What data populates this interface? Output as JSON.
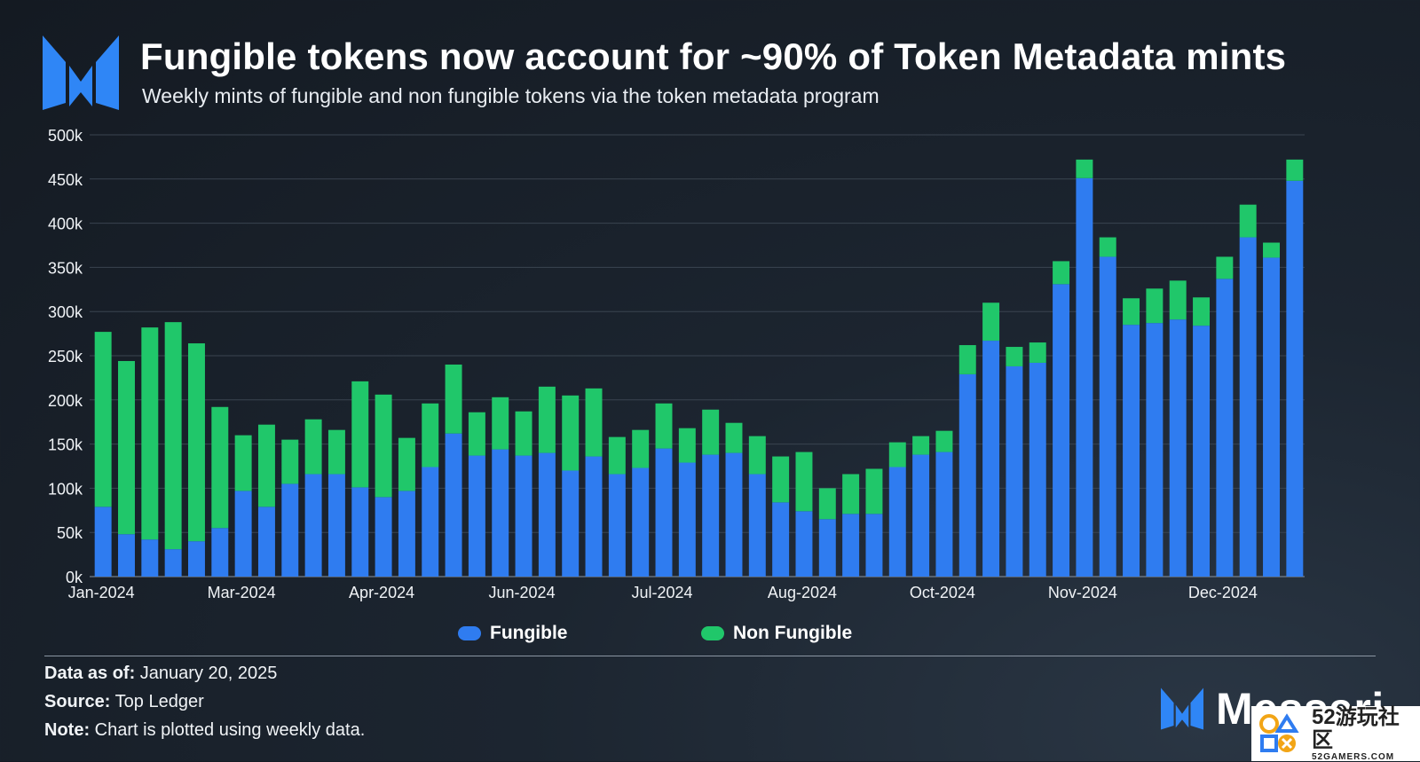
{
  "header": {
    "title": "Fungible tokens now account for ~90% of Token Metadata mints",
    "subtitle": "Weekly mints of fungible and non fungible tokens via the token metadata program"
  },
  "colors": {
    "fungible": "#2f7cf0",
    "non_fungible": "#20c76a",
    "grid": "#3a4450",
    "axis_text": "#f0f3f6",
    "brand_blue": "#2f86f6"
  },
  "chart_data": {
    "type": "bar",
    "stacked": true,
    "title": "",
    "xlabel": "",
    "ylabel": "",
    "ylim": [
      0,
      500000
    ],
    "yticks": [
      "0k",
      "50k",
      "100k",
      "150k",
      "200k",
      "250k",
      "300k",
      "350k",
      "400k",
      "450k",
      "500k"
    ],
    "xtick_labels": [
      {
        "label": "Jan-2024",
        "bar_index": 0
      },
      {
        "label": "Mar-2024",
        "bar_index": 6
      },
      {
        "label": "Apr-2024",
        "bar_index": 12
      },
      {
        "label": "Jun-2024",
        "bar_index": 18
      },
      {
        "label": "Jul-2024",
        "bar_index": 24
      },
      {
        "label": "Aug-2024",
        "bar_index": 30
      },
      {
        "label": "Oct-2024",
        "bar_index": 36
      },
      {
        "label": "Nov-2024",
        "bar_index": 42
      },
      {
        "label": "Dec-2024",
        "bar_index": 48
      }
    ],
    "grid": true,
    "legend_position": "bottom-center",
    "series": [
      {
        "name": "Fungible",
        "values": [
          79000,
          48000,
          42000,
          31000,
          40000,
          55000,
          97000,
          79000,
          105000,
          116000,
          116000,
          101000,
          90000,
          97000,
          124000,
          162000,
          137000,
          144000,
          137000,
          140000,
          120000,
          136000,
          116000,
          123000,
          145000,
          129000,
          138000,
          140000,
          116000,
          84000,
          74000,
          65000,
          71000,
          71000,
          124000,
          138000,
          141000,
          229000,
          267000,
          238000,
          242000,
          331000,
          451000,
          362000,
          285000,
          287000,
          291000,
          284000,
          337000,
          384000,
          361000,
          448000
        ]
      },
      {
        "name": "Non Fungible",
        "values": [
          198000,
          196000,
          240000,
          257000,
          224000,
          137000,
          63000,
          93000,
          50000,
          62000,
          50000,
          120000,
          116000,
          60000,
          72000,
          78000,
          49000,
          59000,
          50000,
          75000,
          85000,
          77000,
          42000,
          43000,
          51000,
          39000,
          51000,
          34000,
          43000,
          52000,
          67000,
          35000,
          45000,
          51000,
          28000,
          21000,
          24000,
          33000,
          43000,
          22000,
          23000,
          26000,
          21000,
          22000,
          30000,
          39000,
          44000,
          32000,
          25000,
          37000,
          17000,
          24000
        ]
      }
    ]
  },
  "footer": {
    "data_as_of_label": "Data as of:",
    "data_as_of_value": " January 20, 2025",
    "source_label": "Source:",
    "source_value": " Top Ledger",
    "note_label": "Note:",
    "note_value": " Chart is plotted using weekly data."
  },
  "brand": {
    "name": "Messari",
    "icon": "messari-logo-icon"
  },
  "watermark": {
    "main": "52游玩社区",
    "sub": "52GAMERS.COM"
  }
}
